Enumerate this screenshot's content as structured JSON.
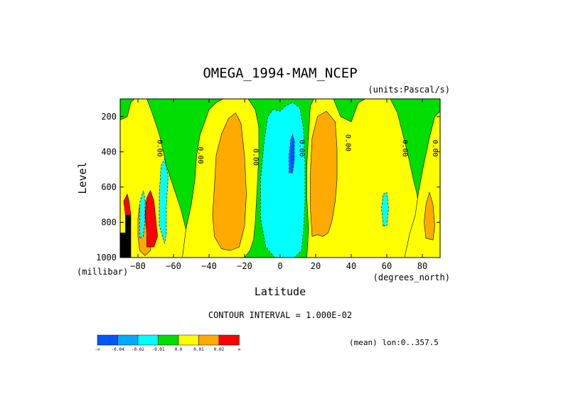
{
  "chart_data": {
    "type": "heatmap",
    "title": "OMEGA_1994-MAM_NCEP",
    "units_label": "(units:Pascal/s)",
    "xlabel": "Latitude",
    "ylabel": "Level",
    "x_units_label": "(degrees_north)",
    "y_units_label": "(millibar)",
    "xlim": [
      -90,
      90
    ],
    "ylim": [
      1000,
      100
    ],
    "x_ticks": [
      -80,
      -60,
      -40,
      -20,
      0,
      20,
      40,
      60,
      80
    ],
    "y_ticks": [
      200,
      400,
      600,
      800,
      1000
    ],
    "grid": false,
    "contour_interval_text": "CONTOUR INTERVAL = 1.000E-02",
    "mean_text": "(mean) lon:0..357.5",
    "zero_contour_labels": [
      {
        "text": "0.00",
        "lat": -69,
        "lev": 380
      },
      {
        "text": "0.00",
        "lat": -46,
        "lev": 420
      },
      {
        "text": "0.00",
        "lat": -15,
        "lev": 430
      },
      {
        "text": "0.00",
        "lat": 11,
        "lev": 380
      },
      {
        "text": "0.00",
        "lat": 37,
        "lev": 350
      },
      {
        "text": "0.00",
        "lat": 69,
        "lev": 380
      },
      {
        "text": "0.00",
        "lat": 86,
        "lev": 380
      }
    ],
    "colorbar": {
      "colors": [
        "#0055ff",
        "#00aaff",
        "#00ffff",
        "#00dd00",
        "#ffff00",
        "#ffaa00",
        "#ff0000"
      ],
      "edge_labels": [
        "-∞",
        "-0.04",
        "-0.02",
        "-0.01",
        "0.0",
        "0.01",
        "0.02",
        "∞"
      ]
    },
    "regions": [
      {
        "level": "green",
        "description": "background negative band"
      },
      {
        "level": "yellow",
        "points": [
          [
            -90,
            1000
          ],
          [
            -90,
            220
          ],
          [
            -86,
            200
          ],
          [
            -84,
            120
          ],
          [
            -82,
            100
          ],
          [
            -75,
            100
          ],
          [
            -72,
            180
          ],
          [
            -68,
            300
          ],
          [
            -64,
            480
          ],
          [
            -60,
            600
          ],
          [
            -56,
            720
          ],
          [
            -53,
            840
          ],
          [
            -50,
            940
          ],
          [
            -48,
            1000
          ]
        ]
      },
      {
        "level": "yellow",
        "points": [
          [
            -55,
            1000
          ],
          [
            -53,
            840
          ],
          [
            -50,
            700
          ],
          [
            -48,
            560
          ],
          [
            -47,
            420
          ],
          [
            -45,
            300
          ],
          [
            -42,
            220
          ],
          [
            -40,
            160
          ],
          [
            -36,
            120
          ],
          [
            -32,
            100
          ],
          [
            -18,
            100
          ],
          [
            -14,
            160
          ],
          [
            -12,
            260
          ],
          [
            -12,
            420
          ],
          [
            -13,
            620
          ],
          [
            -14,
            800
          ],
          [
            -15,
            900
          ],
          [
            -17,
            960
          ],
          [
            -20,
            1000
          ]
        ]
      },
      {
        "level": "yellow",
        "points": [
          [
            15,
            1000
          ],
          [
            16,
            840
          ],
          [
            15,
            660
          ],
          [
            15,
            480
          ],
          [
            16,
            300
          ],
          [
            17,
            140
          ],
          [
            19,
            100
          ],
          [
            30,
            100
          ],
          [
            34,
            200
          ],
          [
            40,
            230
          ],
          [
            44,
            120
          ],
          [
            48,
            100
          ],
          [
            62,
            100
          ],
          [
            66,
            180
          ],
          [
            69,
            300
          ],
          [
            72,
            420
          ],
          [
            75,
            560
          ],
          [
            77,
            640
          ],
          [
            78,
            720
          ],
          [
            79,
            860
          ],
          [
            80,
            960
          ],
          [
            78,
            1000
          ]
        ]
      },
      {
        "level": "yellow",
        "points": [
          [
            70,
            1000
          ],
          [
            73,
            860
          ],
          [
            76,
            760
          ],
          [
            78,
            620
          ],
          [
            81,
            460
          ],
          [
            84,
            320
          ],
          [
            87,
            200
          ],
          [
            90,
            170
          ],
          [
            90,
            1000
          ]
        ]
      },
      {
        "level": "orange",
        "points": [
          [
            -33,
            950
          ],
          [
            -37,
            880
          ],
          [
            -38,
            760
          ],
          [
            -37,
            600
          ],
          [
            -36,
            420
          ],
          [
            -33,
            300
          ],
          [
            -29,
            210
          ],
          [
            -25,
            180
          ],
          [
            -22,
            240
          ],
          [
            -20,
            430
          ],
          [
            -19,
            640
          ],
          [
            -20,
            820
          ],
          [
            -23,
            940
          ],
          [
            -28,
            960
          ]
        ]
      },
      {
        "level": "orange",
        "points": [
          [
            18,
            880
          ],
          [
            17,
            720
          ],
          [
            17,
            520
          ],
          [
            18,
            320
          ],
          [
            21,
            200
          ],
          [
            26,
            170
          ],
          [
            31,
            230
          ],
          [
            32,
            380
          ],
          [
            32,
            560
          ],
          [
            31,
            680
          ],
          [
            29,
            800
          ],
          [
            27,
            860
          ],
          [
            24,
            880
          ],
          [
            21,
            870
          ]
        ]
      },
      {
        "level": "orange",
        "points": [
          [
            82,
            890
          ],
          [
            81,
            800
          ],
          [
            82,
            700
          ],
          [
            84,
            630
          ],
          [
            86,
            700
          ],
          [
            87,
            820
          ],
          [
            86,
            900
          ]
        ]
      },
      {
        "level": "orange",
        "points": [
          [
            -79,
            960
          ],
          [
            -80,
            880
          ],
          [
            -80,
            780
          ],
          [
            -79,
            700
          ],
          [
            -77,
            650
          ],
          [
            -75,
            700
          ],
          [
            -73,
            780
          ],
          [
            -72,
            880
          ],
          [
            -73,
            960
          ],
          [
            -76,
            990
          ]
        ]
      },
      {
        "level": "cyan",
        "points": [
          [
            -3,
            1000
          ],
          [
            -8,
            940
          ],
          [
            -11,
            780
          ],
          [
            -11,
            560
          ],
          [
            -9,
            340
          ],
          [
            -7,
            200
          ],
          [
            -4,
            160
          ],
          [
            0,
            170
          ],
          [
            3,
            140
          ],
          [
            7,
            120
          ],
          [
            11,
            150
          ],
          [
            13,
            260
          ],
          [
            14,
            460
          ],
          [
            14,
            680
          ],
          [
            13,
            860
          ],
          [
            12,
            960
          ],
          [
            8,
            1000
          ]
        ]
      },
      {
        "level": "cyan",
        "points": [
          [
            -65,
            920
          ],
          [
            -68,
            820
          ],
          [
            -68,
            640
          ],
          [
            -67,
            480
          ],
          [
            -65,
            440
          ],
          [
            -63,
            540
          ],
          [
            -64,
            700
          ],
          [
            -64,
            860
          ]
        ]
      },
      {
        "level": "cyan",
        "points": [
          [
            -79,
            890
          ],
          [
            -79,
            790
          ],
          [
            -79,
            690
          ],
          [
            -77,
            620
          ],
          [
            -76,
            670
          ],
          [
            -76,
            790
          ],
          [
            -77,
            880
          ]
        ]
      },
      {
        "level": "cyan",
        "points": [
          [
            58,
            820
          ],
          [
            57,
            720
          ],
          [
            58,
            640
          ],
          [
            60,
            630
          ],
          [
            61,
            720
          ],
          [
            60,
            820
          ]
        ]
      },
      {
        "level": "blue",
        "points": [
          [
            5,
            520
          ],
          [
            5,
            420
          ],
          [
            6,
            330
          ],
          [
            7,
            300
          ],
          [
            8,
            340
          ],
          [
            8,
            440
          ],
          [
            7,
            520
          ]
        ]
      },
      {
        "level": "red",
        "points": [
          [
            -87,
            760
          ],
          [
            -88,
            680
          ],
          [
            -86,
            640
          ],
          [
            -85,
            680
          ],
          [
            -84,
            760
          ],
          [
            -85,
            800
          ]
        ]
      },
      {
        "level": "red",
        "points": [
          [
            -75,
            940
          ],
          [
            -75,
            860
          ],
          [
            -76,
            760
          ],
          [
            -75,
            660
          ],
          [
            -73,
            620
          ],
          [
            -71,
            680
          ],
          [
            -70,
            780
          ],
          [
            -69,
            880
          ],
          [
            -71,
            940
          ]
        ]
      },
      {
        "level": "black",
        "points": [
          [
            -90,
            1000
          ],
          [
            -90,
            860
          ],
          [
            -87,
            860
          ],
          [
            -87,
            760
          ],
          [
            -84,
            760
          ],
          [
            -84,
            1000
          ]
        ]
      }
    ]
  }
}
